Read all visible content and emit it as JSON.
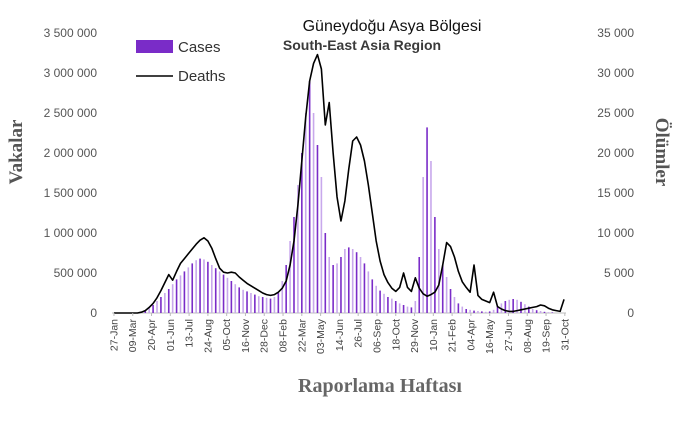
{
  "chart_data": {
    "type": "bar",
    "title": "Güneydoğu Asya Bölgesi",
    "subtitle": "South-East Asia Region",
    "xlabel": "Raporlama Haftası",
    "ylabel": "Vakalar",
    "y2label": "Ölümler",
    "ylim": [
      0,
      3500000
    ],
    "y2lim": [
      0,
      35000
    ],
    "yticks": [
      "0",
      "500 000",
      "1 000 000",
      "1 500 000",
      "2 000 000",
      "2 500 000",
      "3 000 000",
      "3 500 000"
    ],
    "y2ticks": [
      "0",
      "5 000",
      "10 000",
      "15 000",
      "20 000",
      "25 000",
      "30 000",
      "35 000"
    ],
    "categories": [
      "27-Jan",
      "09-Mar",
      "20-Apr",
      "01-Jun",
      "13-Jul",
      "24-Aug",
      "05-Oct",
      "16-Nov",
      "28-Dec",
      "08-Feb",
      "22-Mar",
      "03-May",
      "14-Jun",
      "26-Jul",
      "06-Sep",
      "18-Oct",
      "29-Nov",
      "10-Jan",
      "21-Feb",
      "04-Apr",
      "16-May",
      "27-Jun",
      "08-Aug",
      "19-Sep",
      "31-Oct"
    ],
    "legend_position": "top-left",
    "grid": false,
    "colors": {
      "cases": "#7a2cc8",
      "cases_light": "#c8a8ec",
      "deaths": "#000000"
    },
    "series": [
      {
        "name": "Cases",
        "type": "bar",
        "axis": "left",
        "points": [
          [
            8,
            30000
          ],
          [
            9,
            60000
          ],
          [
            10,
            100000
          ],
          [
            11,
            150000
          ],
          [
            12,
            200000
          ],
          [
            13,
            250000
          ],
          [
            14,
            300000
          ],
          [
            15,
            360000
          ],
          [
            16,
            420000
          ],
          [
            17,
            470000
          ],
          [
            18,
            520000
          ],
          [
            19,
            570000
          ],
          [
            20,
            620000
          ],
          [
            21,
            660000
          ],
          [
            22,
            680000
          ],
          [
            23,
            670000
          ],
          [
            24,
            640000
          ],
          [
            25,
            600000
          ],
          [
            26,
            560000
          ],
          [
            27,
            520000
          ],
          [
            28,
            480000
          ],
          [
            29,
            440000
          ],
          [
            30,
            400000
          ],
          [
            31,
            360000
          ],
          [
            32,
            320000
          ],
          [
            33,
            290000
          ],
          [
            34,
            270000
          ],
          [
            35,
            250000
          ],
          [
            36,
            230000
          ],
          [
            37,
            210000
          ],
          [
            38,
            200000
          ],
          [
            39,
            190000
          ],
          [
            40,
            180000
          ],
          [
            41,
            200000
          ],
          [
            42,
            250000
          ],
          [
            43,
            400000
          ],
          [
            44,
            600000
          ],
          [
            45,
            900000
          ],
          [
            46,
            1200000
          ],
          [
            47,
            1600000
          ],
          [
            48,
            2000000
          ],
          [
            49,
            2500000
          ],
          [
            50,
            2900000
          ],
          [
            51,
            2500000
          ],
          [
            52,
            2100000
          ],
          [
            53,
            1700000
          ],
          [
            54,
            1000000
          ],
          [
            55,
            700000
          ],
          [
            56,
            600000
          ],
          [
            57,
            620000
          ],
          [
            58,
            700000
          ],
          [
            59,
            800000
          ],
          [
            60,
            820000
          ],
          [
            61,
            800000
          ],
          [
            62,
            760000
          ],
          [
            63,
            700000
          ],
          [
            64,
            620000
          ],
          [
            65,
            520000
          ],
          [
            66,
            420000
          ],
          [
            67,
            340000
          ],
          [
            68,
            280000
          ],
          [
            69,
            240000
          ],
          [
            70,
            200000
          ],
          [
            71,
            180000
          ],
          [
            72,
            150000
          ],
          [
            73,
            120000
          ],
          [
            74,
            100000
          ],
          [
            75,
            80000
          ],
          [
            76,
            70000
          ],
          [
            77,
            150000
          ],
          [
            78,
            700000
          ],
          [
            79,
            1700000
          ],
          [
            80,
            2320000
          ],
          [
            81,
            1900000
          ],
          [
            82,
            1200000
          ],
          [
            83,
            800000
          ],
          [
            84,
            600000
          ],
          [
            85,
            450000
          ],
          [
            86,
            300000
          ],
          [
            87,
            200000
          ],
          [
            88,
            120000
          ],
          [
            89,
            80000
          ],
          [
            90,
            50000
          ],
          [
            91,
            40000
          ],
          [
            92,
            30000
          ],
          [
            93,
            25000
          ],
          [
            94,
            20000
          ],
          [
            95,
            15000
          ],
          [
            96,
            20000
          ],
          [
            97,
            40000
          ],
          [
            98,
            80000
          ],
          [
            99,
            120000
          ],
          [
            100,
            150000
          ],
          [
            101,
            165000
          ],
          [
            102,
            175000
          ],
          [
            103,
            165000
          ],
          [
            104,
            140000
          ],
          [
            105,
            110000
          ],
          [
            106,
            80000
          ],
          [
            107,
            50000
          ],
          [
            108,
            35000
          ],
          [
            109,
            25000
          ],
          [
            110,
            15000
          ],
          [
            111,
            10000
          ],
          [
            112,
            8000
          ]
        ]
      },
      {
        "name": "Deaths",
        "type": "line",
        "axis": "right",
        "points": [
          [
            0,
            0
          ],
          [
            6,
            0
          ],
          [
            7,
            100
          ],
          [
            8,
            300
          ],
          [
            9,
            700
          ],
          [
            10,
            1200
          ],
          [
            11,
            1900
          ],
          [
            12,
            2800
          ],
          [
            13,
            3800
          ],
          [
            14,
            4800
          ],
          [
            15,
            4100
          ],
          [
            16,
            5200
          ],
          [
            17,
            6200
          ],
          [
            18,
            6800
          ],
          [
            19,
            7400
          ],
          [
            20,
            8000
          ],
          [
            21,
            8600
          ],
          [
            22,
            9100
          ],
          [
            23,
            9400
          ],
          [
            24,
            9000
          ],
          [
            25,
            8100
          ],
          [
            26,
            6800
          ],
          [
            27,
            5600
          ],
          [
            28,
            5100
          ],
          [
            29,
            5000
          ],
          [
            30,
            5100
          ],
          [
            31,
            5000
          ],
          [
            32,
            4500
          ],
          [
            33,
            4100
          ],
          [
            34,
            3700
          ],
          [
            35,
            3400
          ],
          [
            36,
            3100
          ],
          [
            37,
            2800
          ],
          [
            38,
            2500
          ],
          [
            39,
            2300
          ],
          [
            40,
            2200
          ],
          [
            41,
            2300
          ],
          [
            42,
            2600
          ],
          [
            43,
            3100
          ],
          [
            44,
            4000
          ],
          [
            45,
            6000
          ],
          [
            46,
            9000
          ],
          [
            47,
            13500
          ],
          [
            48,
            19000
          ],
          [
            49,
            24500
          ],
          [
            50,
            29000
          ],
          [
            51,
            31200
          ],
          [
            52,
            32300
          ],
          [
            53,
            30500
          ],
          [
            54,
            23500
          ],
          [
            55,
            26300
          ],
          [
            56,
            20000
          ],
          [
            57,
            14500
          ],
          [
            58,
            11500
          ],
          [
            59,
            14000
          ],
          [
            60,
            18000
          ],
          [
            61,
            21500
          ],
          [
            62,
            22000
          ],
          [
            63,
            21000
          ],
          [
            64,
            19000
          ],
          [
            65,
            16000
          ],
          [
            66,
            12500
          ],
          [
            67,
            9000
          ],
          [
            68,
            6500
          ],
          [
            69,
            4800
          ],
          [
            70,
            3800
          ],
          [
            71,
            3100
          ],
          [
            72,
            2700
          ],
          [
            73,
            3200
          ],
          [
            74,
            5000
          ],
          [
            75,
            3200
          ],
          [
            76,
            2700
          ],
          [
            77,
            4400
          ],
          [
            78,
            3100
          ],
          [
            79,
            2400
          ],
          [
            80,
            2100
          ],
          [
            81,
            2300
          ],
          [
            82,
            2600
          ],
          [
            83,
            3500
          ],
          [
            84,
            6000
          ],
          [
            85,
            8800
          ],
          [
            86,
            8300
          ],
          [
            87,
            7000
          ],
          [
            88,
            5200
          ],
          [
            89,
            3900
          ],
          [
            90,
            3200
          ],
          [
            91,
            2600
          ],
          [
            92,
            6000
          ],
          [
            93,
            2200
          ],
          [
            94,
            1700
          ],
          [
            95,
            1500
          ],
          [
            96,
            1300
          ],
          [
            97,
            2600
          ],
          [
            98,
            800
          ],
          [
            99,
            500
          ],
          [
            100,
            300
          ],
          [
            101,
            200
          ],
          [
            102,
            200
          ],
          [
            103,
            300
          ],
          [
            104,
            400
          ],
          [
            105,
            500
          ],
          [
            106,
            600
          ],
          [
            107,
            700
          ],
          [
            108,
            800
          ],
          [
            109,
            1000
          ],
          [
            110,
            900
          ],
          [
            111,
            600
          ],
          [
            112,
            400
          ],
          [
            113,
            300
          ],
          [
            114,
            200
          ],
          [
            115,
            1700
          ]
        ]
      }
    ]
  }
}
